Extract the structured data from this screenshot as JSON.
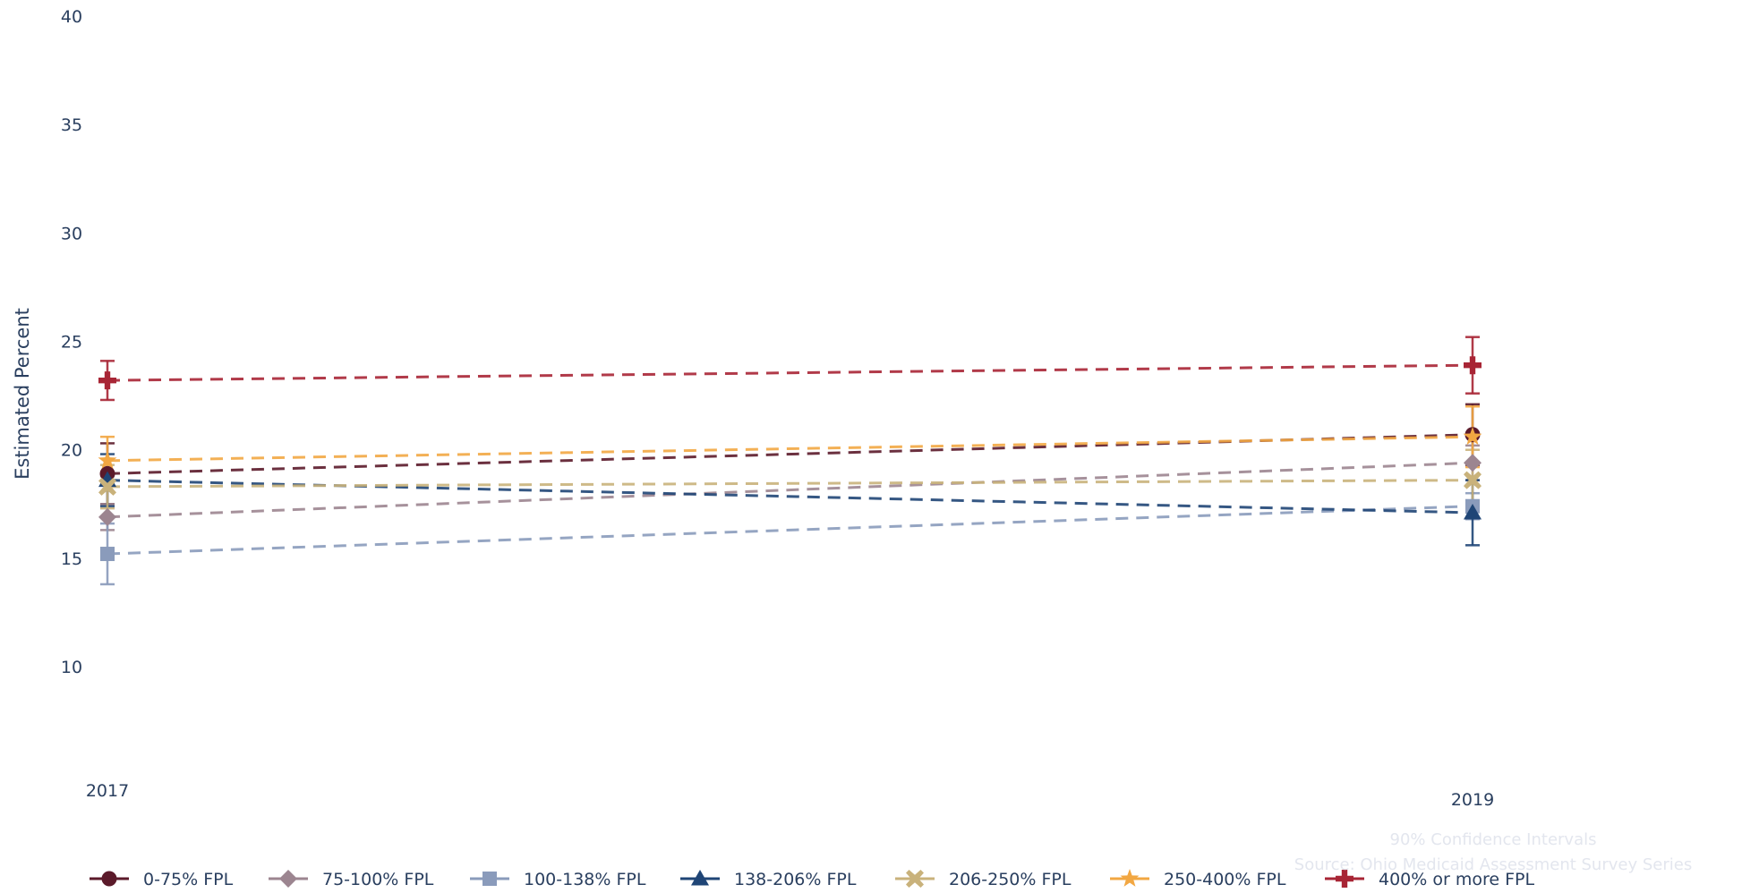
{
  "chart_data": {
    "type": "line",
    "ylabel": "Estimated Percent",
    "x": [
      "2017",
      "2019"
    ],
    "ylim": [
      6,
      40
    ],
    "yticks": [
      10,
      15,
      20,
      25,
      30,
      35,
      40
    ],
    "grid": false,
    "legend_position": "bottom",
    "series": [
      {
        "name": "0-75% FPL",
        "values": [
          18.9,
          20.7
        ],
        "lower": [
          17.5,
          19.3
        ],
        "upper": [
          20.3,
          22.1
        ],
        "color": "#5b1a2a",
        "marker": "circle"
      },
      {
        "name": "75-100% FPL",
        "values": [
          16.9,
          19.4
        ],
        "lower": [
          16.3,
          18.6
        ],
        "upper": [
          17.5,
          20.2
        ],
        "color": "#9c8590",
        "marker": "diamond"
      },
      {
        "name": "100-138% FPL",
        "values": [
          15.2,
          17.4
        ],
        "lower": [
          13.8,
          16.8
        ],
        "upper": [
          16.6,
          18.0
        ],
        "color": "#8a9bbb",
        "marker": "square"
      },
      {
        "name": "138-206% FPL",
        "values": [
          18.6,
          17.1
        ],
        "lower": [
          17.4,
          15.6
        ],
        "upper": [
          19.8,
          18.6
        ],
        "color": "#1f4576",
        "marker": "triangle-up"
      },
      {
        "name": "206-250% FPL",
        "values": [
          18.3,
          18.6
        ],
        "lower": [
          17.3,
          17.2
        ],
        "upper": [
          19.3,
          20.0
        ],
        "color": "#c9b27b",
        "marker": "x"
      },
      {
        "name": "250-400% FPL",
        "values": [
          19.5,
          20.6
        ],
        "lower": [
          18.4,
          19.2
        ],
        "upper": [
          20.6,
          22.0
        ],
        "color": "#f2a742",
        "marker": "star"
      },
      {
        "name": "400% or more FPL",
        "values": [
          23.2,
          23.9
        ],
        "lower": [
          22.3,
          22.6
        ],
        "upper": [
          24.1,
          25.2
        ],
        "color": "#a82535",
        "marker": "cross"
      }
    ],
    "annotations": [
      "90% Confidence Intervals",
      "Source: Ohio Medicaid Assessment Survey Series"
    ]
  }
}
